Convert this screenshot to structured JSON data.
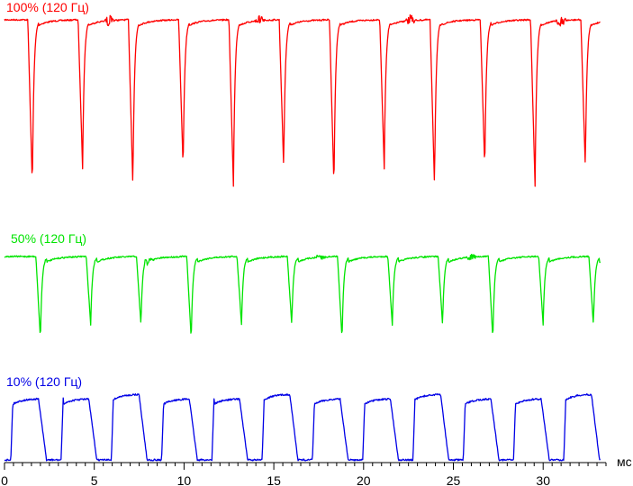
{
  "chart_data": {
    "type": "line",
    "xlabel": "мс",
    "xlim": [
      0,
      33.5
    ],
    "x_ticks": [
      0,
      5,
      10,
      15,
      20,
      25,
      30
    ],
    "x_tick_labels": [
      "0",
      "5",
      "10",
      "15",
      "20",
      "25",
      "30"
    ],
    "grid": false,
    "legend": "none",
    "series": [
      {
        "name": "100% (120 Гц)",
        "color": "#ff0000",
        "period_ms": 2.8,
        "first_dip_ms": 1.55,
        "dips": [
          1.55,
          4.35,
          7.15,
          9.95,
          12.75,
          15.55,
          18.35,
          21.15,
          23.95,
          26.75,
          29.55,
          32.35
        ],
        "deep_dips_every": 2,
        "glitch_near_ms": [
          5.8,
          14.2,
          22.6,
          31.0
        ]
      },
      {
        "name": "50% (120 Гц)",
        "color": "#00e400",
        "period_ms": 2.8,
        "first_dip_ms": 2.0,
        "dips": [
          2.0,
          4.8,
          7.6,
          10.4,
          13.2,
          16.0,
          18.8,
          21.6,
          24.4,
          27.2,
          30.0,
          32.8
        ],
        "deep_dips_every": 3,
        "glitch_near_ms": [
          8.0,
          17.6,
          26.0
        ]
      },
      {
        "name": "10% (120 Гц)",
        "color": "#0000e6",
        "period_ms": 2.8,
        "first_rise_ms": 0.35,
        "rises": [
          0.35,
          3.15,
          5.95,
          8.75,
          11.55,
          14.35,
          17.15,
          19.95,
          22.75,
          25.55,
          28.35,
          31.15
        ],
        "on_fraction": 0.55,
        "tall_pulse_every": 3
      }
    ]
  }
}
